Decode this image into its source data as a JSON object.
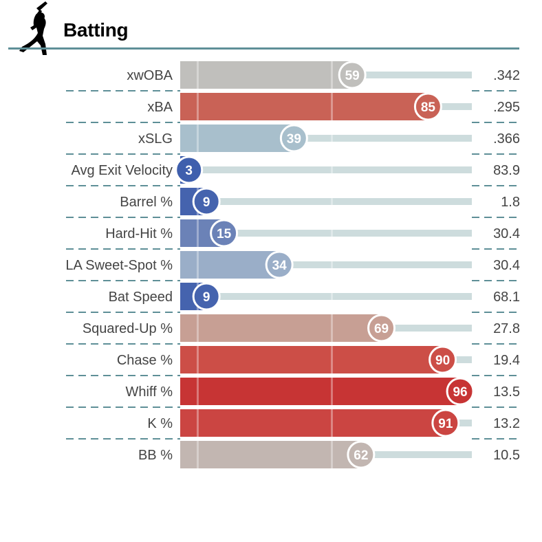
{
  "header": {
    "title": "Batting",
    "icon": "batter-silhouette-icon"
  },
  "colors": {
    "rule": "#5e8f97",
    "track": "#cddcdd",
    "text": "#444444",
    "separator": "#5e8f97"
  },
  "chart_data": {
    "type": "bar",
    "orientation": "horizontal",
    "xlim": [
      0,
      100
    ],
    "categories": [
      "xwOBA",
      "xBA",
      "xSLG",
      "Avg Exit Velocity",
      "Barrel %",
      "Hard-Hit %",
      "LA Sweet-Spot %",
      "Bat Speed",
      "Squared-Up %",
      "Chase %",
      "Whiff %",
      "K %",
      "BB %"
    ],
    "series": [
      {
        "values": [
          59,
          85,
          39,
          3,
          9,
          15,
          34,
          9,
          69,
          90,
          96,
          91,
          62
        ]
      }
    ],
    "stat_values": [
      ".342",
      ".295",
      ".366",
      "83.9",
      "1.8",
      "30.4",
      "30.4",
      "68.1",
      "27.8",
      "19.4",
      "13.5",
      "13.2",
      "10.5"
    ],
    "bar_colors": [
      "#c0bfbc",
      "#c96256",
      "#a8bfcc",
      "#3f5fad",
      "#4563ae",
      "#6b82b7",
      "#9aaec8",
      "#4563ae",
      "#c79f94",
      "#cc4e47",
      "#c73434",
      "#cb4542",
      "#c2b6b1"
    ]
  }
}
